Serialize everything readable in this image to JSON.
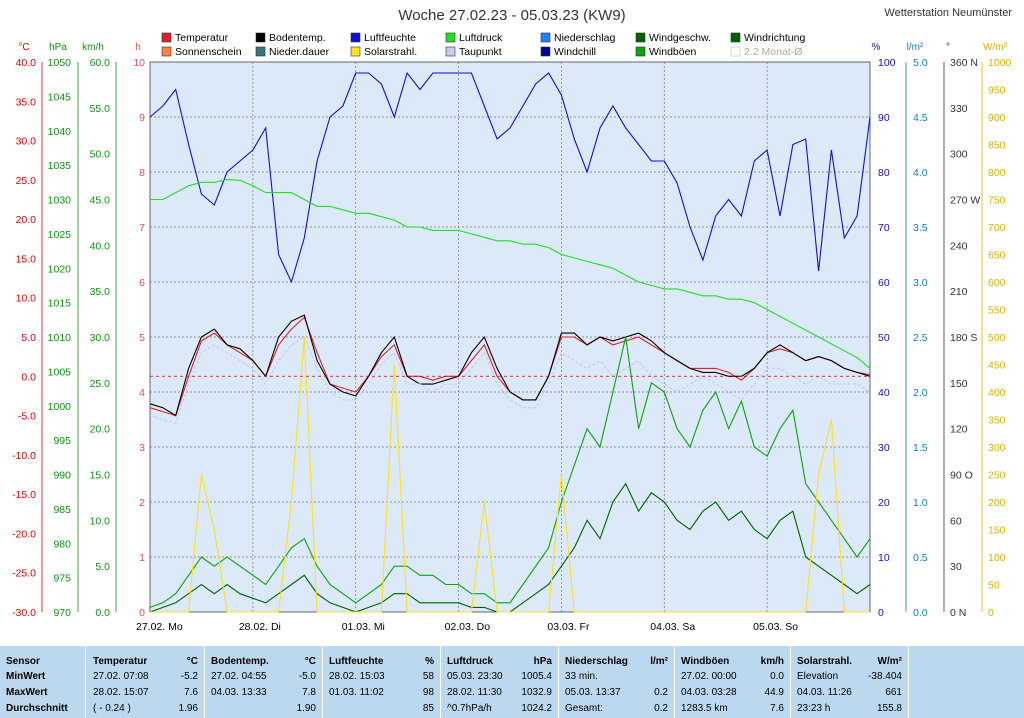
{
  "header": {
    "title": "Woche 27.02.23 - 05.03.23 (KW9)",
    "station": "Wetterstation Neumünster"
  },
  "legend": [
    {
      "label": "Temperatur",
      "color": "#e0202a"
    },
    {
      "label": "Sonnenschein",
      "color": "#ff8040"
    },
    {
      "label": "Bodentemp.",
      "color": "#000000"
    },
    {
      "label": "Nieder.dauer",
      "color": "#3d7575"
    },
    {
      "label": "Luftfeuchte",
      "color": "#1010d8"
    },
    {
      "label": "Solarstrahl.",
      "color": "#ffe020"
    },
    {
      "label": "Luftdruck",
      "color": "#20e020"
    },
    {
      "label": "Taupunkt",
      "color": "#c8c8f0"
    },
    {
      "label": "Niederschlag",
      "color": "#2080ff"
    },
    {
      "label": "Windchill",
      "color": "#000090"
    },
    {
      "label": "Windgeschw.",
      "color": "#006000"
    },
    {
      "label": "Windböen",
      "color": "#10a010"
    },
    {
      "label": "Windrichtung",
      "color": "#006000"
    },
    {
      "label": "2.2 Monat-Ø",
      "color": "#c8c8c8"
    }
  ],
  "axes": {
    "units": [
      "°C",
      "hPa",
      "km/h",
      "h",
      "%",
      "l/m²",
      "°",
      "W/m²"
    ],
    "temp": [
      "40.0",
      "35.0",
      "30.0",
      "25.0",
      "20.0",
      "15.0",
      "10.0",
      "5.0",
      "0.0",
      "-5.0",
      "-10.0",
      "-15.0",
      "-20.0",
      "-25.0",
      "-30.0"
    ],
    "hpa": [
      "1050",
      "1045",
      "1040",
      "1035",
      "1030",
      "1025",
      "1020",
      "1015",
      "1010",
      "1005",
      "1000",
      "995",
      "990",
      "985",
      "980",
      "975",
      "970"
    ],
    "kmh": [
      "60.0",
      "55.0",
      "50.0",
      "45.0",
      "40.0",
      "35.0",
      "30.0",
      "25.0",
      "20.0",
      "15.0",
      "10.0",
      "5.0",
      "0.0"
    ],
    "hours": [
      "10",
      "9",
      "8",
      "7",
      "6",
      "5",
      "4",
      "3",
      "2",
      "1",
      "0"
    ],
    "percent": [
      "100",
      "90",
      "80",
      "70",
      "60",
      "50",
      "40",
      "30",
      "20",
      "10",
      "0"
    ],
    "lm2": [
      "5.0",
      "4.5",
      "4.0",
      "3.5",
      "3.0",
      "2.5",
      "2.0",
      "1.5",
      "1.0",
      "0.5",
      "0.0"
    ],
    "deg": [
      "360 N",
      "330",
      "300",
      "270 W",
      "240",
      "210",
      "180 S",
      "150",
      "120",
      "90 O",
      "60",
      "30",
      "0 N"
    ],
    "wm2": [
      "1000",
      "950",
      "900",
      "850",
      "800",
      "750",
      "700",
      "650",
      "600",
      "550",
      "500",
      "450",
      "400",
      "350",
      "300",
      "250",
      "200",
      "150",
      "100",
      "50",
      "0"
    ],
    "days": [
      "27.02.  Mo",
      "28.02.  Di",
      "01.03.  Mi",
      "02.03.  Do",
      "03.03.  Fr",
      "04.03.  Sa",
      "05.03.  So"
    ]
  },
  "chart_data": {
    "type": "line",
    "title": "Woche 27.02.23 - 05.03.23 (KW9)",
    "x_hours": [
      0,
      3,
      6,
      9,
      12,
      15,
      18,
      21,
      24,
      27,
      30,
      33,
      36,
      39,
      42,
      45,
      48,
      51,
      54,
      57,
      60,
      63,
      66,
      69,
      72,
      75,
      78,
      81,
      84,
      87,
      90,
      93,
      96,
      99,
      102,
      105,
      108,
      111,
      114,
      117,
      120,
      123,
      126,
      129,
      132,
      135,
      138,
      141,
      144,
      147,
      150,
      153,
      156,
      159,
      162,
      165,
      168
    ],
    "x_range_hours": [
      0,
      168
    ],
    "series": [
      {
        "name": "Temperatur",
        "unit": "°C",
        "values": [
          -4,
          -4.5,
          -5,
          0,
          4.5,
          5.5,
          4,
          3,
          2,
          0,
          4,
          6,
          7.5,
          3,
          -1,
          -1.5,
          -2,
          0,
          2.5,
          4,
          0,
          0,
          -0.5,
          0,
          0,
          2,
          4,
          0,
          -2,
          -3,
          -3,
          0,
          5,
          5,
          4,
          5,
          4,
          4.5,
          5,
          4,
          3,
          2,
          1,
          1,
          1,
          0.5,
          -0.5,
          1,
          3,
          3.5,
          3,
          2,
          2.5,
          2,
          1,
          0.5,
          0.2
        ]
      },
      {
        "name": "Bodentemp.",
        "unit": "°C",
        "values": [
          -3.5,
          -4,
          -5,
          1,
          5,
          6,
          4,
          3.5,
          2,
          0,
          5,
          7,
          7.8,
          2,
          -1,
          -2,
          -2.5,
          0,
          3,
          5,
          0,
          -1,
          -1,
          -0.5,
          0,
          3,
          5,
          1,
          -2,
          -3,
          -3,
          0,
          5.5,
          5.5,
          4,
          5,
          4.5,
          5,
          5.5,
          4.5,
          3,
          2,
          1,
          0.5,
          0.5,
          0,
          0,
          1,
          3,
          4,
          3,
          2,
          2.5,
          2,
          1,
          0.5,
          0
        ]
      },
      {
        "name": "Taupunkt",
        "unit": "°C",
        "values": [
          -5,
          -5.5,
          -6,
          -1,
          3,
          4,
          3,
          2,
          1,
          -1,
          2,
          4,
          5,
          1,
          -2,
          -3,
          -3,
          -1,
          1.5,
          3,
          -1,
          -1,
          -2,
          -1,
          -1,
          1,
          3,
          -1,
          -3,
          -4,
          -4,
          -1,
          3,
          2,
          1,
          2,
          0,
          1,
          2,
          0,
          -1,
          -2,
          -1,
          0,
          -1,
          -2,
          -3,
          -1,
          1,
          1,
          0,
          -1,
          0,
          -1,
          -1,
          -1,
          -2
        ]
      },
      {
        "name": "Luftfeuchte",
        "unit": "%",
        "values": [
          90,
          92,
          95,
          85,
          76,
          74,
          80,
          82,
          84,
          88,
          65,
          60,
          68,
          82,
          90,
          92,
          98,
          98,
          96,
          90,
          98,
          95,
          98,
          98,
          98,
          98,
          92,
          86,
          88,
          92,
          96,
          98,
          94,
          86,
          80,
          88,
          92,
          88,
          85,
          82,
          82,
          78,
          70,
          64,
          72,
          75,
          72,
          82,
          84,
          72,
          85,
          86,
          62,
          84,
          68,
          72,
          90
        ]
      },
      {
        "name": "Luftdruck",
        "unit": "hPa",
        "values": [
          1030,
          1030,
          1031,
          1032,
          1032.5,
          1032.5,
          1032.9,
          1032.8,
          1032,
          1031,
          1031,
          1031,
          1030,
          1029,
          1029,
          1028.5,
          1028,
          1028,
          1027.5,
          1027,
          1026,
          1026,
          1025.5,
          1025.5,
          1025.5,
          1025,
          1024.5,
          1024,
          1024,
          1023.5,
          1023.5,
          1023,
          1022,
          1021.5,
          1021,
          1020.5,
          1020,
          1019,
          1018,
          1017.5,
          1017,
          1017,
          1016.5,
          1016,
          1016,
          1015.5,
          1015.5,
          1015,
          1014,
          1013,
          1012,
          1011,
          1010,
          1009,
          1008,
          1007,
          1005.4
        ]
      },
      {
        "name": "Windgeschw.",
        "unit": "km/h",
        "values": [
          0,
          0.5,
          1,
          2,
          3,
          2,
          3,
          2,
          1.5,
          1,
          2,
          3,
          4,
          2,
          1,
          0.5,
          0,
          0.5,
          1,
          2,
          2,
          1,
          1,
          1,
          1,
          0.5,
          0.5,
          0,
          0,
          1,
          2,
          3,
          5,
          7,
          10,
          8,
          12,
          14,
          11,
          13,
          12,
          10,
          9,
          11,
          12,
          10,
          11,
          9,
          8,
          10,
          11,
          6,
          5,
          4,
          3,
          2,
          3
        ]
      },
      {
        "name": "Windböen",
        "unit": "km/h",
        "values": [
          0.5,
          1,
          2,
          4,
          6,
          5,
          6,
          5,
          4,
          3,
          5,
          7,
          8,
          5,
          3,
          2,
          1,
          2,
          3,
          5,
          5,
          4,
          4,
          3,
          3,
          2,
          2,
          1,
          1,
          3,
          5,
          7,
          12,
          16,
          20,
          18,
          24,
          30,
          20,
          25,
          24,
          20,
          18,
          22,
          24,
          20,
          23,
          18,
          17,
          20,
          22,
          14,
          12,
          10,
          8,
          6,
          8
        ]
      },
      {
        "name": "Solarstrahl.",
        "unit": "W/m²",
        "values": [
          0,
          0,
          0,
          0,
          250,
          150,
          0,
          0,
          0,
          0,
          0,
          200,
          500,
          0,
          0,
          0,
          0,
          0,
          0,
          450,
          0,
          0,
          0,
          0,
          0,
          0,
          200,
          0,
          0,
          0,
          0,
          0,
          250,
          0,
          0,
          0,
          0,
          0,
          0,
          0,
          0,
          0,
          0,
          0,
          0,
          0,
          0,
          0,
          0,
          0,
          0,
          0,
          250,
          350,
          0,
          0,
          0
        ]
      }
    ]
  },
  "table": {
    "row_labels": {
      "sensor": "Sensor",
      "min": "MinWert",
      "max": "MaxWert",
      "avg": "Durchschnitt"
    },
    "groups": [
      {
        "title": "Temperatur",
        "unit": "°C",
        "min": [
          "27.02.  07:08",
          "-5.2"
        ],
        "max": [
          "28.02.  15:07",
          "7.6"
        ],
        "avg": [
          "( - 0.24 )",
          "1.96"
        ]
      },
      {
        "title": "Bodentemp.",
        "unit": "°C",
        "min": [
          "27.02.  04:55",
          "-5.0"
        ],
        "max": [
          "04.03.  13:33",
          "7.8"
        ],
        "avg": [
          "",
          "1.90"
        ]
      },
      {
        "title": "Luftfeuchte",
        "unit": "%",
        "min": [
          "28.02.  15:03",
          "58"
        ],
        "max": [
          "01.03.  11:02",
          "98"
        ],
        "avg": [
          "",
          "85"
        ]
      },
      {
        "title": "Luftdruck",
        "unit": "hPa",
        "min": [
          "05.03.  23:30",
          "1005.4"
        ],
        "max": [
          "28.02.  11:30",
          "1032.9"
        ],
        "avg": [
          "^0.7hPa/h",
          "1024.2"
        ]
      },
      {
        "title": "Niederschlag",
        "unit": "l/m²",
        "min": [
          "33 min.",
          ""
        ],
        "max": [
          "05.03.  13:37",
          "0.2"
        ],
        "avg": [
          "Gesamt:",
          "0.2"
        ]
      },
      {
        "title": "Windböen",
        "unit": "km/h",
        "min": [
          "27.02.  00:00",
          "0.0"
        ],
        "max": [
          "04.03.  03:28",
          "44.9"
        ],
        "avg": [
          "1283.5 km",
          "7.6"
        ]
      },
      {
        "title": "Solarstrahl.",
        "unit": "W/m²",
        "min": [
          "Elevation",
          "-38.404"
        ],
        "max": [
          "04.03.  11:26",
          "661"
        ],
        "avg": [
          "23:23 h",
          "155.8"
        ]
      }
    ]
  }
}
